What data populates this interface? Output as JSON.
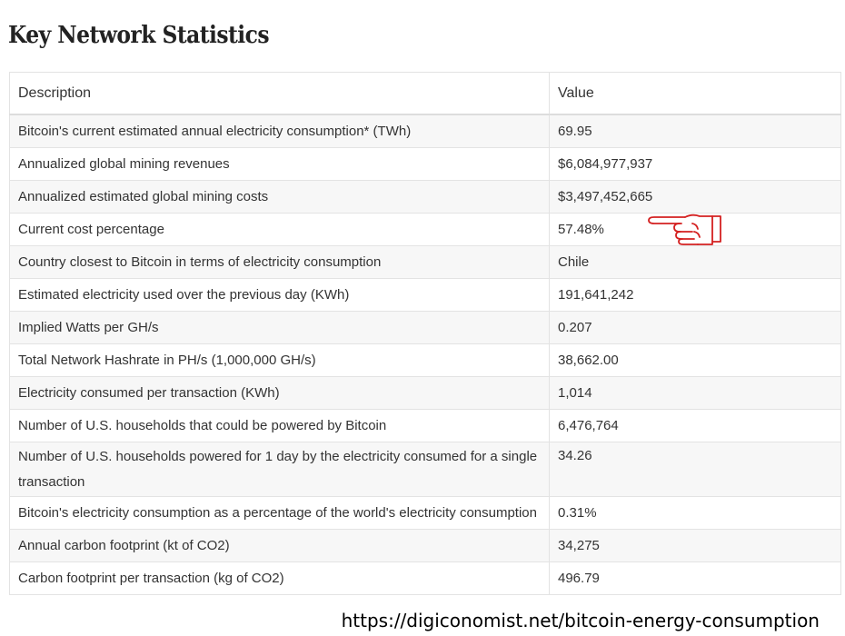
{
  "page": {
    "title": "Key Network Statistics"
  },
  "table": {
    "headers": [
      "Description",
      "Value"
    ],
    "rows": [
      {
        "description": "Bitcoin's current estimated annual electricity consumption* (TWh)",
        "value": "69.95"
      },
      {
        "description": "Annualized global mining revenues",
        "value": "$6,084,977,937"
      },
      {
        "description": "Annualized estimated global mining costs",
        "value": "$3,497,452,665"
      },
      {
        "description": "Current cost percentage",
        "value": "57.48%"
      },
      {
        "description": "Country closest to Bitcoin in terms of electricity consumption",
        "value": "Chile"
      },
      {
        "description": "Estimated electricity used over the previous day (KWh)",
        "value": "191,641,242"
      },
      {
        "description": "Implied Watts per GH/s",
        "value": "0.207"
      },
      {
        "description": "Total Network Hashrate in PH/s (1,000,000 GH/s)",
        "value": "38,662.00"
      },
      {
        "description": "Electricity consumed per transaction (KWh)",
        "value": "1,014"
      },
      {
        "description": "Number of U.S. households that could be powered by Bitcoin",
        "value": "6,476,764"
      },
      {
        "description": "Number of U.S. households powered for 1 day by the electricity consumed for a single transaction",
        "value": "34.26"
      },
      {
        "description": "Bitcoin's electricity consumption as a percentage of the world's electricity consumption",
        "value": "0.31%"
      },
      {
        "description": "Annual carbon footprint (kt of CO2)",
        "value": "34,275"
      },
      {
        "description": "Carbon footprint per transaction (kg of CO2)",
        "value": "496.79"
      }
    ]
  },
  "annotation": {
    "icon": "pointing-hand-icon",
    "color": "#d42020"
  },
  "source": {
    "url": "https://digiconomist.net/bitcoin-energy-consumption"
  }
}
